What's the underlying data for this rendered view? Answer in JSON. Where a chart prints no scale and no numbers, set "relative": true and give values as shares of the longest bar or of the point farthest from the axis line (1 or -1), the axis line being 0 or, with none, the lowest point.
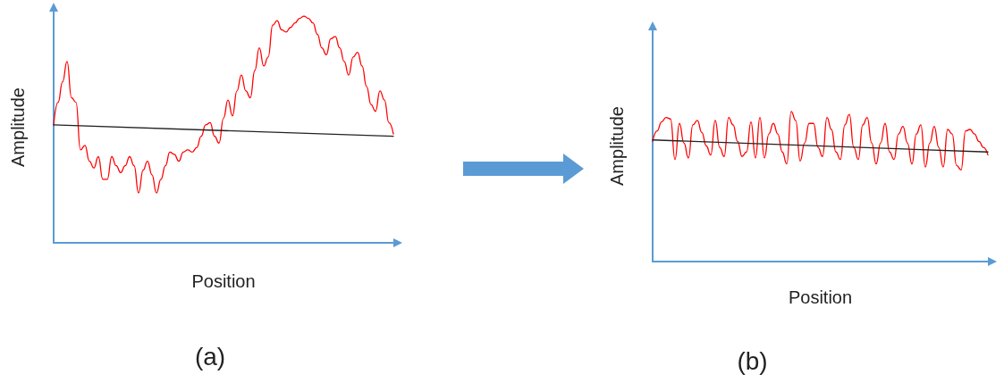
{
  "chart_data": [
    {
      "type": "line",
      "relative": true,
      "xlabel": "Position",
      "ylabel": "Amplitude",
      "annotations": [
        "(a)"
      ],
      "marker": "none",
      "line_style": "solid",
      "categories": [
        null,
        null,
        null,
        null,
        null,
        null,
        null,
        null,
        null,
        null,
        null,
        null,
        null,
        null,
        null,
        null,
        null,
        null,
        null,
        null,
        null,
        null,
        null,
        null,
        null,
        null,
        null,
        null,
        null,
        null,
        null,
        null,
        null,
        null,
        null,
        null,
        null,
        null,
        null,
        null,
        null,
        null,
        null,
        null,
        null,
        null,
        null,
        null,
        null,
        null,
        null,
        null,
        null,
        null,
        null,
        null,
        null,
        null,
        null,
        null,
        null,
        null,
        null,
        null,
        null,
        null,
        null,
        null,
        null,
        null,
        null,
        null,
        null,
        null,
        null,
        null,
        null
      ],
      "series": [
        {
          "color": "#ff0000",
          "values": [
            0.52,
            0.62,
            0.71,
            0.8,
            0.64,
            0.62,
            0.41,
            0.43,
            0.36,
            0.33,
            0.38,
            0.28,
            0.28,
            0.38,
            0.34,
            0.31,
            0.34,
            0.38,
            0.34,
            0.22,
            0.32,
            0.36,
            0.3,
            0.22,
            0.28,
            0.34,
            0.4,
            0.39,
            0.36,
            0.4,
            0.41,
            0.4,
            0.42,
            0.47,
            0.52,
            0.53,
            0.47,
            0.44,
            0.55,
            0.63,
            0.56,
            0.67,
            0.74,
            0.67,
            0.64,
            0.76,
            0.86,
            0.78,
            0.82,
            0.96,
            0.98,
            0.94,
            0.93,
            0.95,
            0.97,
            0.99,
            1.0,
            0.99,
            0.97,
            0.92,
            0.86,
            0.83,
            0.9,
            0.91,
            0.86,
            0.8,
            0.74,
            0.82,
            0.84,
            0.78,
            0.69,
            0.61,
            0.58,
            0.67,
            0.63,
            0.53,
            0.48
          ]
        },
        {
          "color": "#222222",
          "values": [
            0.52,
            null,
            null,
            null,
            null,
            null,
            null,
            null,
            null,
            null,
            null,
            null,
            null,
            null,
            null,
            null,
            null,
            null,
            null,
            null,
            null,
            null,
            null,
            null,
            null,
            null,
            null,
            null,
            null,
            null,
            null,
            null,
            null,
            null,
            null,
            null,
            null,
            null,
            null,
            null,
            null,
            null,
            null,
            null,
            null,
            null,
            null,
            null,
            null,
            null,
            null,
            null,
            null,
            null,
            null,
            null,
            null,
            null,
            null,
            null,
            null,
            null,
            null,
            null,
            null,
            null,
            null,
            null,
            null,
            null,
            null,
            null,
            null,
            null,
            null,
            null,
            0.47
          ]
        }
      ]
    },
    {
      "type": "line",
      "relative": true,
      "xlabel": "Position",
      "ylabel": "Amplitude",
      "annotations": [
        "(b)"
      ],
      "marker": "none",
      "line_style": "solid",
      "categories": [
        null,
        null,
        null,
        null,
        null,
        null,
        null,
        null,
        null,
        null,
        null,
        null,
        null,
        null,
        null,
        null,
        null,
        null,
        null,
        null,
        null,
        null,
        null,
        null,
        null,
        null,
        null,
        null,
        null,
        null,
        null,
        null,
        null,
        null,
        null,
        null,
        null,
        null,
        null,
        null,
        null,
        null,
        null,
        null,
        null,
        null,
        null,
        null,
        null,
        null,
        null,
        null,
        null,
        null,
        null,
        null,
        null,
        null,
        null,
        null,
        null,
        null,
        null,
        null,
        null,
        null,
        null,
        null,
        null,
        null,
        null,
        null,
        null,
        null,
        null,
        null
      ],
      "series": [
        {
          "color": "#ff0000",
          "values": [
            0.8,
            0.87,
            0.93,
            0.96,
            0.95,
            0.68,
            0.92,
            0.79,
            0.69,
            0.91,
            0.94,
            0.86,
            0.77,
            0.71,
            0.94,
            0.76,
            0.7,
            0.96,
            0.91,
            0.8,
            0.7,
            0.73,
            0.93,
            0.69,
            0.96,
            0.69,
            0.85,
            0.92,
            0.85,
            0.73,
            0.65,
            1.0,
            0.94,
            0.67,
            0.79,
            0.92,
            0.92,
            0.76,
            0.7,
            0.96,
            0.88,
            0.73,
            0.68,
            0.91,
            0.98,
            0.76,
            0.68,
            0.91,
            0.96,
            0.79,
            0.65,
            0.79,
            0.92,
            0.73,
            0.68,
            0.85,
            0.9,
            0.79,
            0.65,
            0.85,
            0.91,
            0.63,
            0.79,
            0.9,
            0.76,
            0.63,
            0.88,
            0.85,
            0.64,
            0.61,
            0.87,
            0.88,
            0.85,
            0.8,
            0.76,
            0.71
          ]
        },
        {
          "color": "#222222",
          "values": [
            0.81,
            null,
            null,
            null,
            null,
            null,
            null,
            null,
            null,
            null,
            null,
            null,
            null,
            null,
            null,
            null,
            null,
            null,
            null,
            null,
            null,
            null,
            null,
            null,
            null,
            null,
            null,
            null,
            null,
            null,
            null,
            null,
            null,
            null,
            null,
            null,
            null,
            null,
            null,
            null,
            null,
            null,
            null,
            null,
            null,
            null,
            null,
            null,
            null,
            null,
            null,
            null,
            null,
            null,
            null,
            null,
            null,
            null,
            null,
            null,
            null,
            null,
            null,
            null,
            null,
            null,
            null,
            null,
            null,
            null,
            null,
            null,
            null,
            null,
            null,
            0.73
          ]
        }
      ]
    }
  ]
}
